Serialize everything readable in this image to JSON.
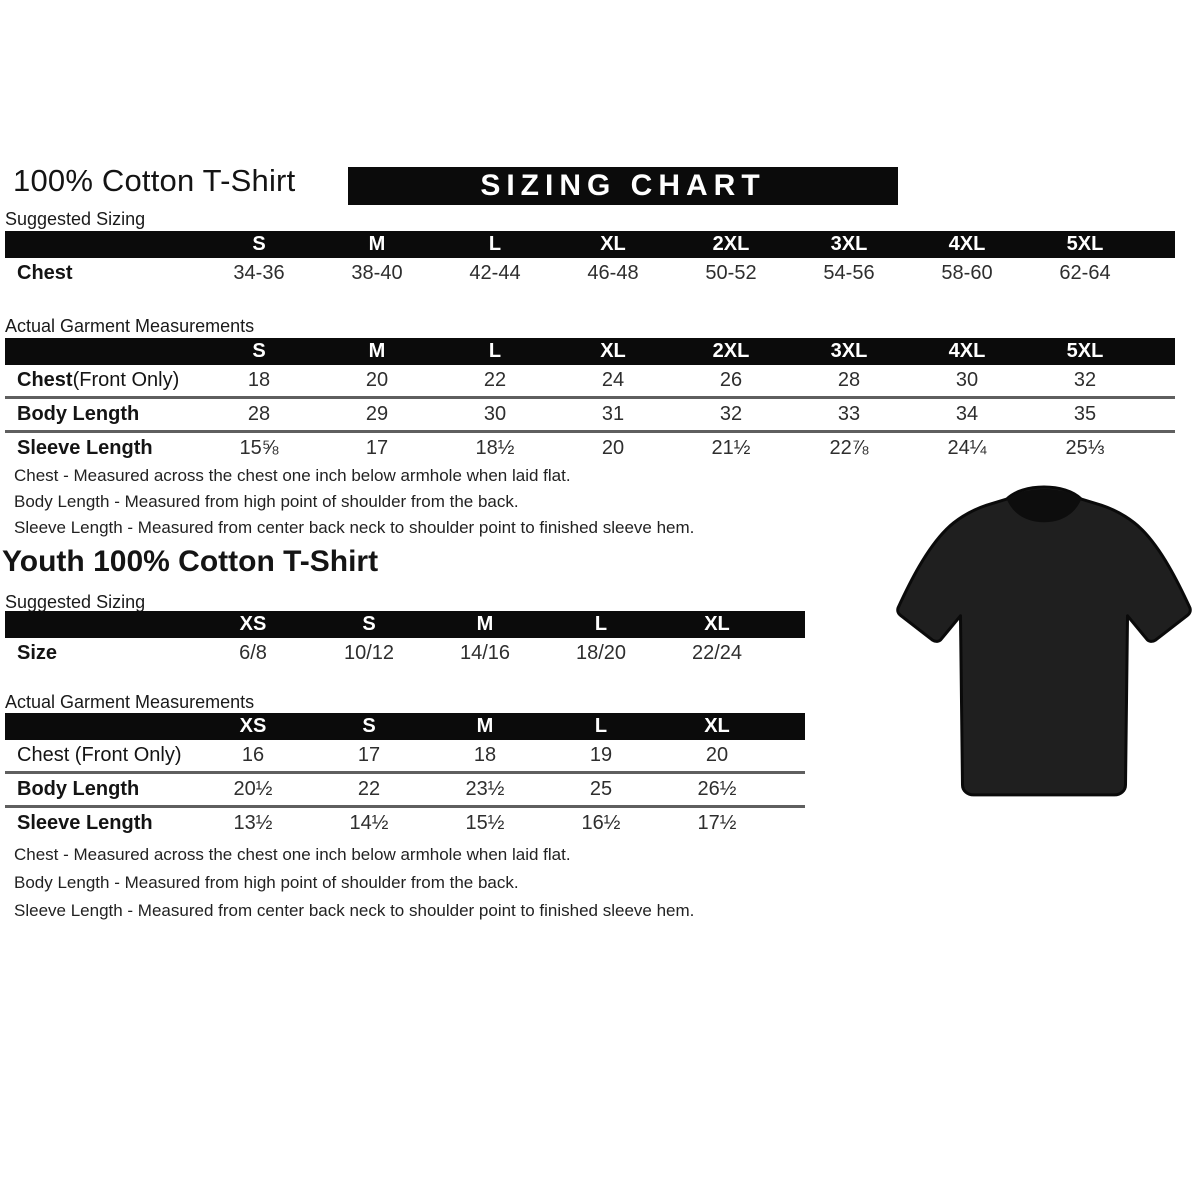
{
  "page": {
    "title": "100% Cotton T-Shirt",
    "banner": "SIZING CHART",
    "youth_title": "Youth 100% Cotton T-Shirt"
  },
  "labels": {
    "suggested": "Suggested Sizing",
    "actual": "Actual Garment Measurements"
  },
  "colors": {
    "banner_bg": "#0b0b0b",
    "header_bg": "#0b0b0b",
    "shirt": "#1f1f1f",
    "shirt_dark": "#0d0d0d"
  },
  "adult": {
    "suggested": {
      "columns": [
        "S",
        "M",
        "L",
        "XL",
        "2XL",
        "3XL",
        "4XL",
        "5XL"
      ],
      "rows": [
        {
          "label": "Chest",
          "suffix": "",
          "bold_label": true,
          "values": [
            "34-36",
            "38-40",
            "42-44",
            "46-48",
            "50-52",
            "54-56",
            "58-60",
            "62-64"
          ]
        }
      ]
    },
    "actual": {
      "columns": [
        "S",
        "M",
        "L",
        "XL",
        "2XL",
        "3XL",
        "4XL",
        "5XL"
      ],
      "rows": [
        {
          "label": "Chest",
          "suffix": " (Front Only)",
          "bold_label": true,
          "values": [
            "18",
            "20",
            "22",
            "24",
            "26",
            "28",
            "30",
            "32"
          ]
        },
        {
          "label": "Body Length",
          "suffix": "",
          "bold_label": true,
          "values": [
            "28",
            "29",
            "30",
            "31",
            "32",
            "33",
            "34",
            "35"
          ]
        },
        {
          "label": "Sleeve Length",
          "suffix": "",
          "bold_label": true,
          "values": [
            "15⅝",
            "17",
            "18½",
            "20",
            "21½",
            "22⅞",
            "24¼",
            "25⅓"
          ]
        }
      ]
    },
    "notes": [
      "Chest - Measured across the chest one inch below armhole when laid flat.",
      "Body Length - Measured from high point of shoulder from the back.",
      "Sleeve Length - Measured from center back neck to shoulder point to finished sleeve hem."
    ]
  },
  "youth": {
    "suggested": {
      "columns": [
        "XS",
        "S",
        "M",
        "L",
        "XL"
      ],
      "rows": [
        {
          "label": "Size",
          "suffix": "",
          "bold_label": true,
          "values": [
            "6/8",
            "10/12",
            "14/16",
            "18/20",
            "22/24"
          ]
        }
      ]
    },
    "actual": {
      "columns": [
        "XS",
        "S",
        "M",
        "L",
        "XL"
      ],
      "rows": [
        {
          "label": "Chest (Front Only)",
          "suffix": "",
          "bold_label": false,
          "values": [
            "16",
            "17",
            "18",
            "19",
            "20"
          ]
        },
        {
          "label": "Body Length",
          "suffix": "",
          "bold_label": true,
          "values": [
            "20½",
            "22",
            "23½",
            "25",
            "26½"
          ]
        },
        {
          "label": "Sleeve Length",
          "suffix": "",
          "bold_label": true,
          "values": [
            "13½",
            "14½",
            "15½",
            "16½",
            "17½"
          ]
        }
      ]
    },
    "notes": [
      "Chest - Measured across the chest one inch below armhole when laid flat.",
      "Body Length - Measured from high point of shoulder from the back.",
      "Sleeve Length - Measured from center back neck to shoulder point to finished sleeve hem."
    ]
  },
  "tshirt": {
    "alt": "black short-sleeve crew-neck t-shirt"
  }
}
